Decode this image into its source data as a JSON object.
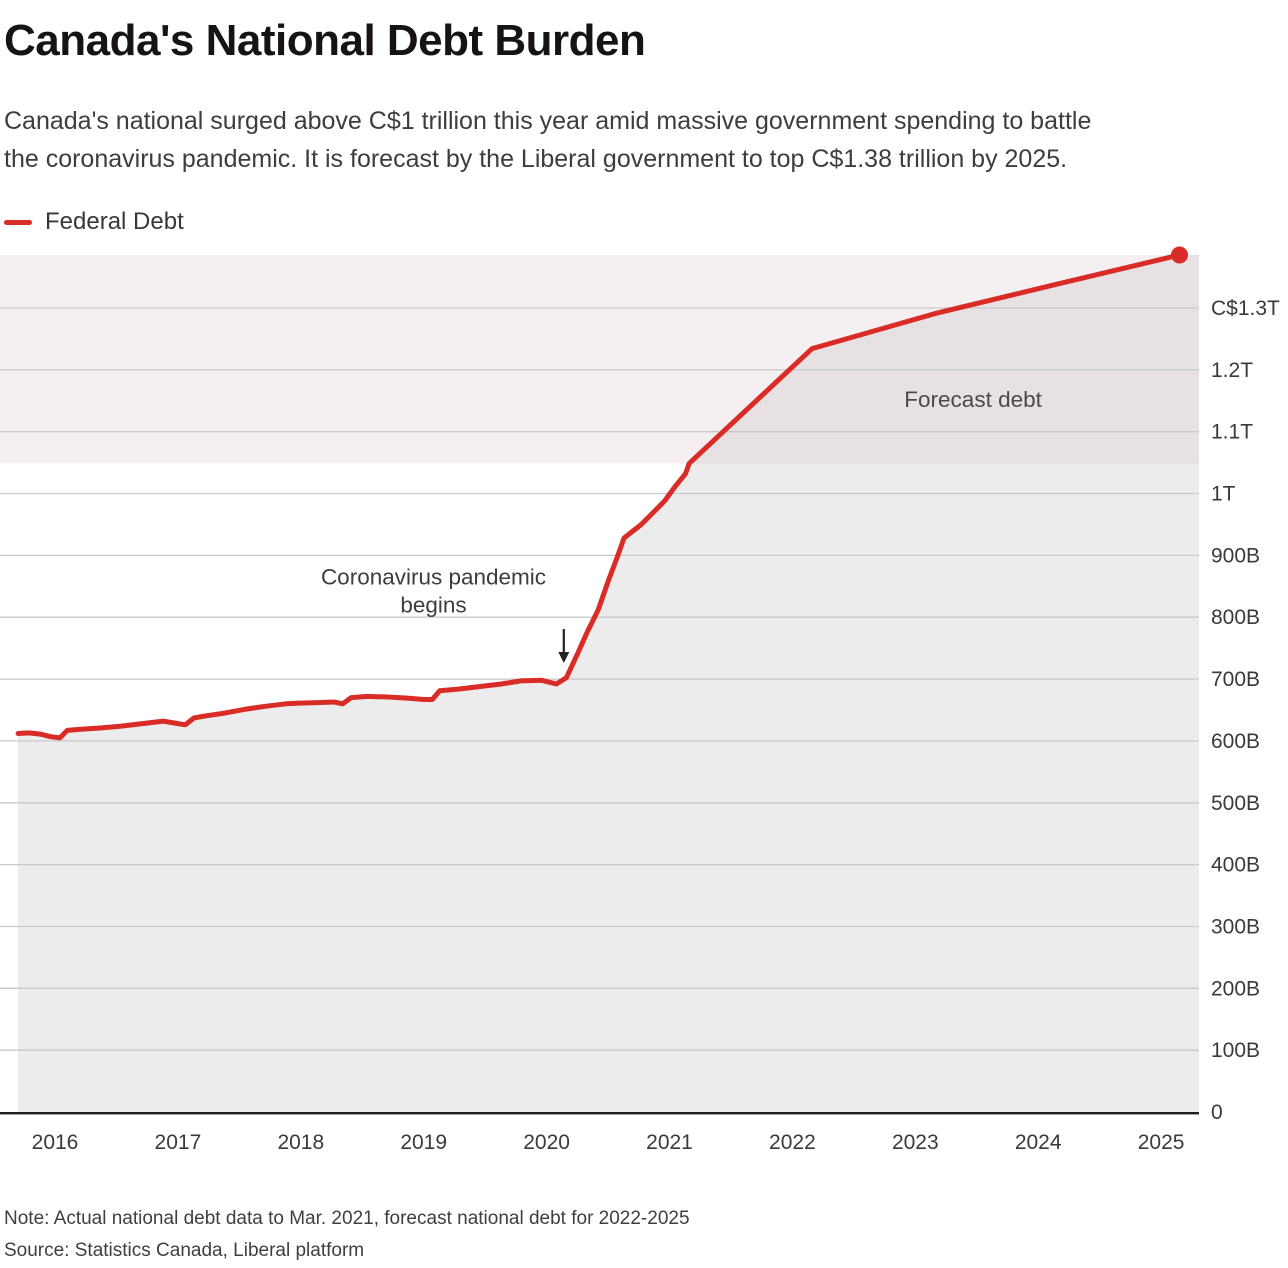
{
  "header": {
    "title": "Canada's National Debt Burden",
    "subtitle_lines": [
      "Canada's national surged above C$1 trillion this year amid massive government spending to battle",
      "the coronavirus pandemic. It is forecast by the Liberal government to top C$1.38 trillion by 2025."
    ]
  },
  "legend": {
    "label": "Federal Debt"
  },
  "footer": {
    "note": "Note: Actual national debt data to Mar. 2021, forecast national debt for 2022-2025",
    "source": "Source: Statistics Canada, Liberal platform"
  },
  "chart_data": {
    "type": "area",
    "title": "Canada's National Debt Burden",
    "unit": "Canadian dollars, billions",
    "xlabel": "",
    "ylabel": "",
    "grid": true,
    "legend_position": "top-left",
    "x_range": [
      2015.7,
      2025.35
    ],
    "y_range": [
      0,
      1385.7
    ],
    "x_ticks": [
      2016,
      2017,
      2018,
      2019,
      2020,
      2021,
      2022,
      2023,
      2024,
      2025
    ],
    "y_ticks": [
      {
        "value": 1300,
        "label": "C$1.3T"
      },
      {
        "value": 1200,
        "label": "1.2T"
      },
      {
        "value": 1100,
        "label": "1.1T"
      },
      {
        "value": 1000,
        "label": "1T"
      },
      {
        "value": 900,
        "label": "900B"
      },
      {
        "value": 800,
        "label": "800B"
      },
      {
        "value": 700,
        "label": "700B"
      },
      {
        "value": 600,
        "label": "600B"
      },
      {
        "value": 500,
        "label": "500B"
      },
      {
        "value": 400,
        "label": "400B"
      },
      {
        "value": 300,
        "label": "300B"
      },
      {
        "value": 200,
        "label": "200B"
      },
      {
        "value": 100,
        "label": "100B"
      },
      {
        "value": 0,
        "label": "0"
      }
    ],
    "series": [
      {
        "name": "Federal Debt (actual, monthly to Mar. 2021)",
        "points": [
          [
            2015.7,
            612
          ],
          [
            2015.79,
            613
          ],
          [
            2015.88,
            611
          ],
          [
            2015.96,
            607
          ],
          [
            2016.04,
            605
          ],
          [
            2016.1,
            617
          ],
          [
            2016.21,
            619
          ],
          [
            2016.38,
            621
          ],
          [
            2016.54,
            624
          ],
          [
            2016.71,
            628
          ],
          [
            2016.88,
            632
          ],
          [
            2017.0,
            628
          ],
          [
            2017.06,
            626
          ],
          [
            2017.13,
            637
          ],
          [
            2017.21,
            640
          ],
          [
            2017.38,
            645
          ],
          [
            2017.54,
            651
          ],
          [
            2017.71,
            656
          ],
          [
            2017.88,
            660
          ],
          [
            2017.96,
            661
          ],
          [
            2018.13,
            662
          ],
          [
            2018.27,
            663
          ],
          [
            2018.34,
            660
          ],
          [
            2018.41,
            670
          ],
          [
            2018.54,
            672
          ],
          [
            2018.71,
            671
          ],
          [
            2018.88,
            669
          ],
          [
            2019.0,
            667
          ],
          [
            2019.07,
            667
          ],
          [
            2019.13,
            681
          ],
          [
            2019.29,
            684
          ],
          [
            2019.46,
            688
          ],
          [
            2019.63,
            692
          ],
          [
            2019.79,
            697
          ],
          [
            2019.96,
            698
          ],
          [
            2020.08,
            692
          ],
          [
            2020.16,
            702
          ],
          [
            2020.25,
            740
          ],
          [
            2020.33,
            776
          ],
          [
            2020.42,
            812
          ],
          [
            2020.5,
            858
          ],
          [
            2020.58,
            900
          ],
          [
            2020.63,
            928
          ],
          [
            2020.77,
            950
          ],
          [
            2020.88,
            972
          ],
          [
            2020.96,
            988
          ],
          [
            2021.04,
            1010
          ],
          [
            2021.13,
            1032
          ],
          [
            2021.16,
            1048.7
          ]
        ]
      },
      {
        "name": "Federal Debt (forecast 2022-2025)",
        "points": [
          [
            2021.16,
            1048.7
          ],
          [
            2022.16,
            1234.4
          ],
          [
            2023.16,
            1291.0
          ],
          [
            2024.16,
            1338.9
          ],
          [
            2025.15,
            1385.7
          ]
        ]
      }
    ],
    "forecast_band": {
      "from_value": 1048.7,
      "to_value": 1385.7
    },
    "annotations": [
      {
        "id": "pandemic",
        "lines": [
          "Coronavirus pandemic",
          "begins"
        ],
        "x_year": 2019.08,
        "y_value": 853,
        "arrow_x_year": 2020.14
      },
      {
        "id": "forecast-label",
        "lines": [
          "Forecast debt"
        ],
        "x_year": 2023.47,
        "y_value": 1153
      }
    ],
    "colors": {
      "line_red": "#da2c26",
      "area_fill": "#ececec",
      "forecast_band": "rgba(222,192,200,0.26)",
      "gridline": "#c9c9c9",
      "axis": "#1f1f1f",
      "tick_text": "#3a3a3a",
      "annotation_text": "#3d3d3d"
    }
  }
}
